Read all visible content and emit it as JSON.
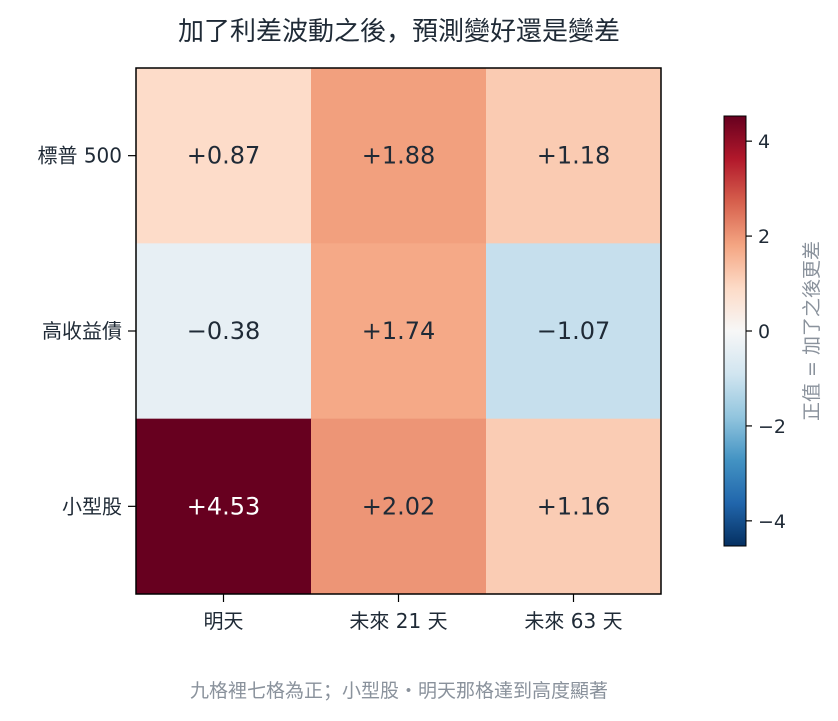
{
  "chart_data": {
    "type": "heatmap",
    "title": "加了利差波動之後，預測變好還是變差",
    "rows": [
      "標普 500",
      "高收益債",
      "小型股"
    ],
    "columns": [
      "明天",
      "未來 21 天",
      "未來 63 天"
    ],
    "values": [
      [
        0.87,
        1.88,
        1.18
      ],
      [
        -0.38,
        1.74,
        -1.07
      ],
      [
        4.53,
        2.02,
        1.16
      ]
    ],
    "value_labels": [
      [
        "+0.87",
        "+1.88",
        "+1.18"
      ],
      [
        "−0.38",
        "+1.74",
        "−1.07"
      ],
      [
        "+4.53",
        "+2.02",
        "+1.16"
      ]
    ],
    "colormap": "RdBu_r",
    "vmin": -4.53,
    "vmax": 4.53,
    "colorbar": {
      "label": "正值 = 加了之後更差",
      "ticks": [
        4,
        2,
        0,
        -2,
        -4
      ],
      "tick_labels": [
        "4",
        "2",
        "0",
        "−2",
        "−4"
      ]
    },
    "footnote": "九格裡七格為正；小型股・明天那格達到高度顯著"
  }
}
